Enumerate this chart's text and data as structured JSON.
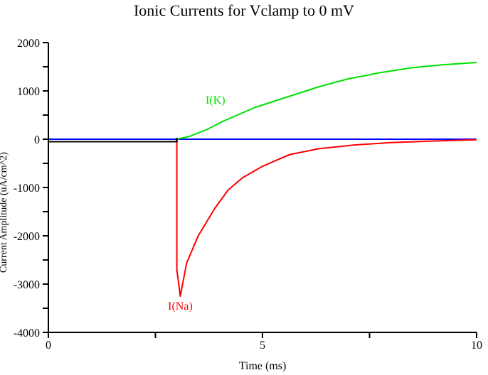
{
  "chart_data": {
    "type": "line",
    "title": "Ionic Currents for Vclamp to 0 mV",
    "xlabel": "Time (ms)",
    "ylabel": "Current Amplitude (uA/cm^2)",
    "series": [
      {
        "color": "#00e000",
        "x": [
          3,
          3.3,
          3.7,
          4.1,
          4.8,
          5.63,
          6.3,
          7,
          7.7,
          8.5,
          9.2,
          10
        ],
        "values": [
          0,
          60,
          200,
          380,
          650,
          890,
          1080,
          1250,
          1370,
          1480,
          1540,
          1590
        ]
      },
      {
        "color": "#ff0000",
        "x": [
          3,
          3,
          3.08,
          3.23,
          3.5,
          3.88,
          4.2,
          4.53,
          5,
          5.63,
          6.3,
          7.13,
          8,
          8.9,
          10
        ],
        "values": [
          0,
          -2700,
          -3250,
          -2560,
          -2000,
          -1440,
          -1050,
          -800,
          -560,
          -320,
          -200,
          -120,
          -70,
          -40,
          -10
        ]
      },
      {
        "color": "#000000",
        "x": [
          0,
          3,
          3
        ],
        "values": [
          -50,
          -50,
          20
        ]
      }
    ],
    "annotations": [
      {
        "text": "I(K)",
        "x": 4.1,
        "y": 380
      },
      {
        "text": "I(Na)",
        "x": 3.08,
        "y": -3250
      }
    ],
    "ref_lines": [
      {
        "axis": "y",
        "value": 0,
        "color": "#0000ff"
      }
    ],
    "xlim": [
      0,
      10
    ],
    "xticks": [
      0,
      {
        "value": 2.5,
        "label": null
      },
      5,
      {
        "value": 7.5,
        "label": null
      },
      10
    ],
    "ylim": [
      -4000,
      2000
    ],
    "yticks": [
      -4000,
      {
        "value": -3500,
        "label": null
      },
      -3000,
      {
        "value": -2500,
        "label": null
      },
      -2000,
      {
        "value": -1500,
        "label": null
      },
      -1000,
      {
        "value": -500,
        "label": null
      },
      0,
      {
        "value": 500,
        "label": null
      },
      1000,
      {
        "value": 1500,
        "label": null
      },
      2000
    ],
    "grid": false,
    "legend": false,
    "marker": "none",
    "line_style": "solid"
  }
}
